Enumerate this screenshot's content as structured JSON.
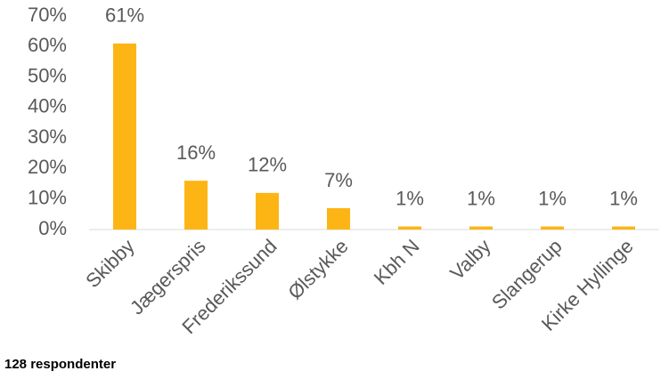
{
  "chart_data": {
    "type": "bar",
    "categories": [
      "Skibby",
      "Jægerspris",
      "Frederikssund",
      "Ølstykke",
      "Kbh N",
      "Valby",
      "Slangerup",
      "Kirke Hyllinge"
    ],
    "values": [
      61,
      16,
      12,
      7,
      1,
      1,
      1,
      1
    ],
    "value_labels": [
      "61%",
      "16%",
      "12%",
      "7%",
      "1%",
      "1%",
      "1%",
      "1%"
    ],
    "color": "#fdb515",
    "ylim": [
      0,
      70
    ],
    "yticks": [
      {
        "value": 0,
        "label": "0%"
      },
      {
        "value": 10,
        "label": "10%"
      },
      {
        "value": 20,
        "label": "20%"
      },
      {
        "value": 30,
        "label": "30%"
      },
      {
        "value": 40,
        "label": "40%"
      },
      {
        "value": 50,
        "label": "50%"
      },
      {
        "value": 60,
        "label": "60%"
      },
      {
        "value": 70,
        "label": "70%"
      }
    ],
    "grid": false,
    "note": "128 respondenter"
  }
}
